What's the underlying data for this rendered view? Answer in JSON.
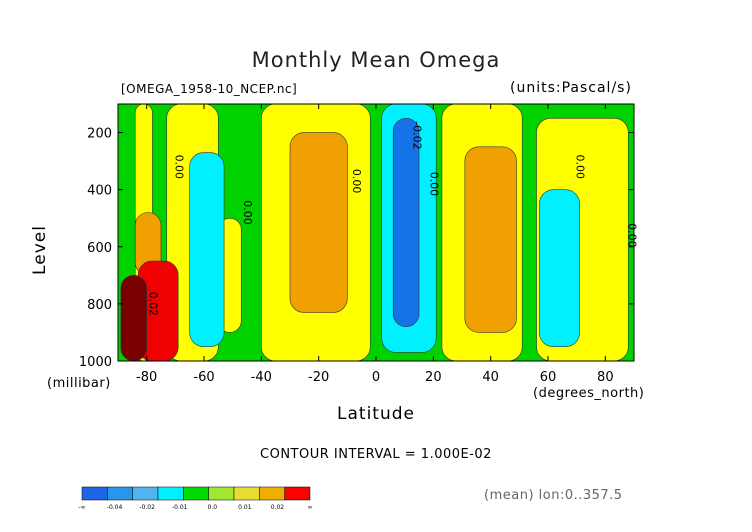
{
  "chart_data": {
    "type": "heatmap",
    "title": "Monthly Mean Omega",
    "source_label": "[OMEGA_1958-10_NCEP.nc]",
    "units_label": "(units:Pascal/s)",
    "ylabel": "Level",
    "ylabel_units": "(millibar)",
    "xlabel": "Latitude",
    "xlabel_units": "(degrees_north)",
    "contour_interval_text": "CONTOUR INTERVAL = 1.000E-02",
    "footer_note": "(mean) lon:0..357.5",
    "xlim": [
      -90,
      90
    ],
    "ylim": [
      1000,
      100
    ],
    "y_scale": "linear, inverted (pressure)",
    "x_ticks": [
      "-80",
      "-60",
      "-40",
      "-20",
      "0",
      "20",
      "40",
      "60",
      "80"
    ],
    "y_ticks": [
      "200",
      "400",
      "600",
      "800",
      "1000"
    ],
    "contour_labels": [
      {
        "text": "0.00",
        "lat": -70,
        "level": 320
      },
      {
        "text": "0.00",
        "lat": -46,
        "level": 480
      },
      {
        "text": "0.00",
        "lat": -8,
        "level": 370
      },
      {
        "text": "-0.02",
        "lat": 13,
        "level": 210
      },
      {
        "text": "0.00",
        "lat": 19,
        "level": 380
      },
      {
        "text": "0.00",
        "lat": 70,
        "level": 320
      },
      {
        "text": "0.00",
        "lat": 88,
        "level": 560
      },
      {
        "text": "0.02",
        "lat": -79,
        "level": 800
      }
    ],
    "colorbar": {
      "labels": [
        "-∞",
        "-0.04",
        "-0.02",
        "-0.01",
        "0.0",
        "0.01",
        "0.02",
        "∞"
      ],
      "colors": [
        "#1e64e6",
        "#2896eb",
        "#50b4f0",
        "#00f0ff",
        "#00dc00",
        "#a0e632",
        "#e6dc32",
        "#f0af00",
        "#ff0000"
      ],
      "class_colors": {
        "vneg": "#1473e6",
        "neg": "#00f0ff",
        "weakneg": "#00d200",
        "zero": "#ffff00",
        "pos": "#f0a000",
        "strong": "#f00000",
        "extreme": "#780000"
      }
    },
    "regions": [
      {
        "class": "weakneg",
        "lat": [
          -90,
          90
        ],
        "level": [
          100,
          1000
        ]
      },
      {
        "class": "zero",
        "lat": [
          -84,
          -78
        ],
        "level": [
          100,
          1000
        ]
      },
      {
        "class": "zero",
        "lat": [
          -73,
          -55
        ],
        "level": [
          100,
          1000
        ]
      },
      {
        "class": "zero",
        "lat": [
          -40,
          -2
        ],
        "level": [
          100,
          1000
        ]
      },
      {
        "class": "zero",
        "lat": [
          23,
          51
        ],
        "level": [
          100,
          1000
        ]
      },
      {
        "class": "zero",
        "lat": [
          56,
          88
        ],
        "level": [
          150,
          1000
        ]
      },
      {
        "class": "zero",
        "lat": [
          -55,
          -47
        ],
        "level": [
          500,
          900
        ]
      },
      {
        "class": "pos",
        "lat": [
          -84,
          -75
        ],
        "level": [
          480,
          700
        ]
      },
      {
        "class": "pos",
        "lat": [
          -30,
          -10
        ],
        "level": [
          200,
          830
        ]
      },
      {
        "class": "pos",
        "lat": [
          31,
          49
        ],
        "level": [
          250,
          900
        ]
      },
      {
        "class": "neg",
        "lat": [
          -65,
          -53
        ],
        "level": [
          270,
          950
        ]
      },
      {
        "class": "neg",
        "lat": [
          2,
          21
        ],
        "level": [
          100,
          970
        ]
      },
      {
        "class": "vneg",
        "lat": [
          6,
          15
        ],
        "level": [
          150,
          880
        ]
      },
      {
        "class": "neg",
        "lat": [
          57,
          71
        ],
        "level": [
          400,
          950
        ]
      },
      {
        "class": "strong",
        "lat": [
          -83,
          -69
        ],
        "level": [
          650,
          1000
        ]
      },
      {
        "class": "extreme",
        "lat": [
          -89,
          -80
        ],
        "level": [
          700,
          1000
        ]
      }
    ]
  }
}
